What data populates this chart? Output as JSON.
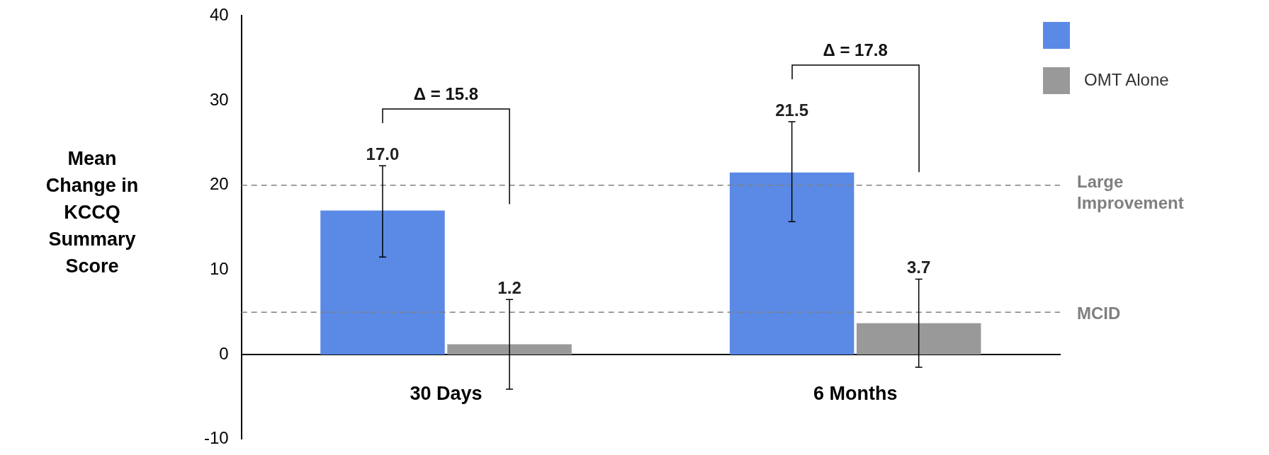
{
  "chart_data": {
    "type": "bar",
    "ylabel": "Mean Change in KCCQ Summary Score",
    "categories": [
      "30 Days",
      "6 Months"
    ],
    "series": [
      {
        "color": "#5b8ae6",
        "values": [
          17.0,
          21.5
        ],
        "errors": [
          [
            11.5,
            22.3
          ],
          [
            15.7,
            27.5
          ]
        ],
        "value_labels": [
          "17.0",
          "21.5"
        ]
      },
      {
        "name": "OMT Alone",
        "color": "#999999",
        "values": [
          1.2,
          3.7
        ],
        "errors": [
          [
            -4.1,
            6.5
          ],
          [
            -1.5,
            8.9
          ]
        ],
        "value_labels": [
          "1.2",
          "3.7"
        ]
      }
    ],
    "ylim": [
      -10,
      40
    ],
    "yticks": [
      -10,
      0,
      10,
      20,
      30,
      40
    ],
    "grid": false,
    "legend": "top right",
    "ref_lines": [
      {
        "axis": "y",
        "value": 20,
        "label": "Large Improvement",
        "color": "#808080",
        "line_style": "dashed"
      },
      {
        "axis": "y",
        "value": 5,
        "label": "MCID",
        "color": "#808080",
        "line_style": "dashed"
      }
    ],
    "annotations": [
      "Δ = 15.8",
      "Δ = 17.8"
    ]
  }
}
